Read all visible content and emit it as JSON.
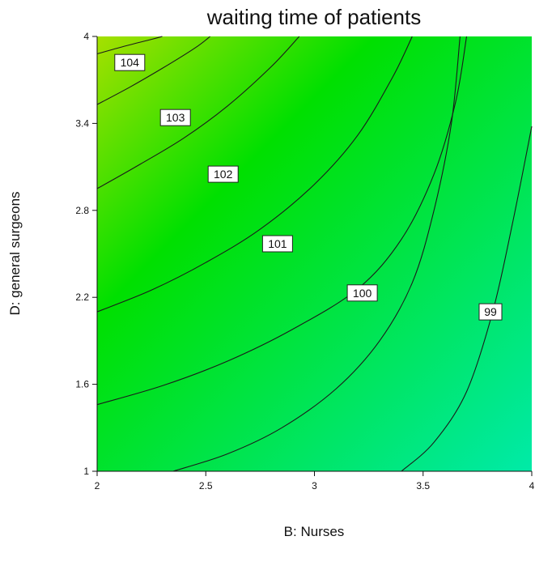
{
  "chart_data": {
    "type": "contour",
    "title": "waiting time of patients",
    "xlabel": "B: Nurses",
    "ylabel": "D: general surgeons",
    "xlim": [
      2,
      4
    ],
    "ylim": [
      1,
      4
    ],
    "xticks": [
      "2",
      "2.5",
      "3",
      "3.5",
      "4"
    ],
    "yticks": [
      "1",
      "1.6",
      "2.2",
      "2.8",
      "3.4",
      "4"
    ],
    "grid": false,
    "colors": {
      "high": "#a6e000",
      "mid": "#00e000",
      "low": "#00e8a0",
      "line": "#1a1a1a"
    },
    "contours": [
      {
        "level": "104",
        "label_x": 2.15,
        "label_y": 3.82,
        "points": [
          [
            2.0,
            3.88
          ],
          [
            2.12,
            3.93
          ],
          [
            2.25,
            3.98
          ],
          [
            2.3,
            4.0
          ]
        ]
      },
      {
        "level": "103",
        "label_x": 2.36,
        "label_y": 3.44,
        "points": [
          [
            2.0,
            3.53
          ],
          [
            2.15,
            3.65
          ],
          [
            2.3,
            3.78
          ],
          [
            2.45,
            3.92
          ],
          [
            2.52,
            4.0
          ]
        ]
      },
      {
        "level": "102",
        "label_x": 2.58,
        "label_y": 3.05,
        "points": [
          [
            2.0,
            2.95
          ],
          [
            2.2,
            3.12
          ],
          [
            2.4,
            3.3
          ],
          [
            2.6,
            3.52
          ],
          [
            2.8,
            3.79
          ],
          [
            2.93,
            4.0
          ]
        ]
      },
      {
        "level": "101",
        "label_x": 2.83,
        "label_y": 2.57,
        "points": [
          [
            2.0,
            2.1
          ],
          [
            2.25,
            2.25
          ],
          [
            2.5,
            2.44
          ],
          [
            2.75,
            2.67
          ],
          [
            3.0,
            2.98
          ],
          [
            3.2,
            3.32
          ],
          [
            3.36,
            3.72
          ],
          [
            3.45,
            4.0
          ]
        ]
      },
      {
        "level": "100",
        "label_x": 3.22,
        "label_y": 2.23,
        "points": [
          [
            2.0,
            1.46
          ],
          [
            2.3,
            1.59
          ],
          [
            2.6,
            1.76
          ],
          [
            2.9,
            1.98
          ],
          [
            3.2,
            2.26
          ],
          [
            3.4,
            2.6
          ],
          [
            3.55,
            3.05
          ],
          [
            3.65,
            3.55
          ],
          [
            3.7,
            4.0
          ]
        ]
      },
      {
        "level": "99",
        "label_x": 3.81,
        "label_y": 2.1,
        "points": [
          [
            3.4,
            1.0
          ],
          [
            3.55,
            1.2
          ],
          [
            3.7,
            1.55
          ],
          [
            3.82,
            2.1
          ],
          [
            3.91,
            2.7
          ],
          [
            4.0,
            3.38
          ]
        ]
      },
      {
        "level": "",
        "label_x": null,
        "label_y": null,
        "points": [
          [
            2.35,
            1.0
          ],
          [
            2.6,
            1.12
          ],
          [
            2.85,
            1.3
          ],
          [
            3.1,
            1.57
          ],
          [
            3.3,
            1.9
          ],
          [
            3.45,
            2.3
          ],
          [
            3.55,
            2.8
          ],
          [
            3.63,
            3.4
          ],
          [
            3.67,
            4.0
          ]
        ]
      }
    ]
  }
}
